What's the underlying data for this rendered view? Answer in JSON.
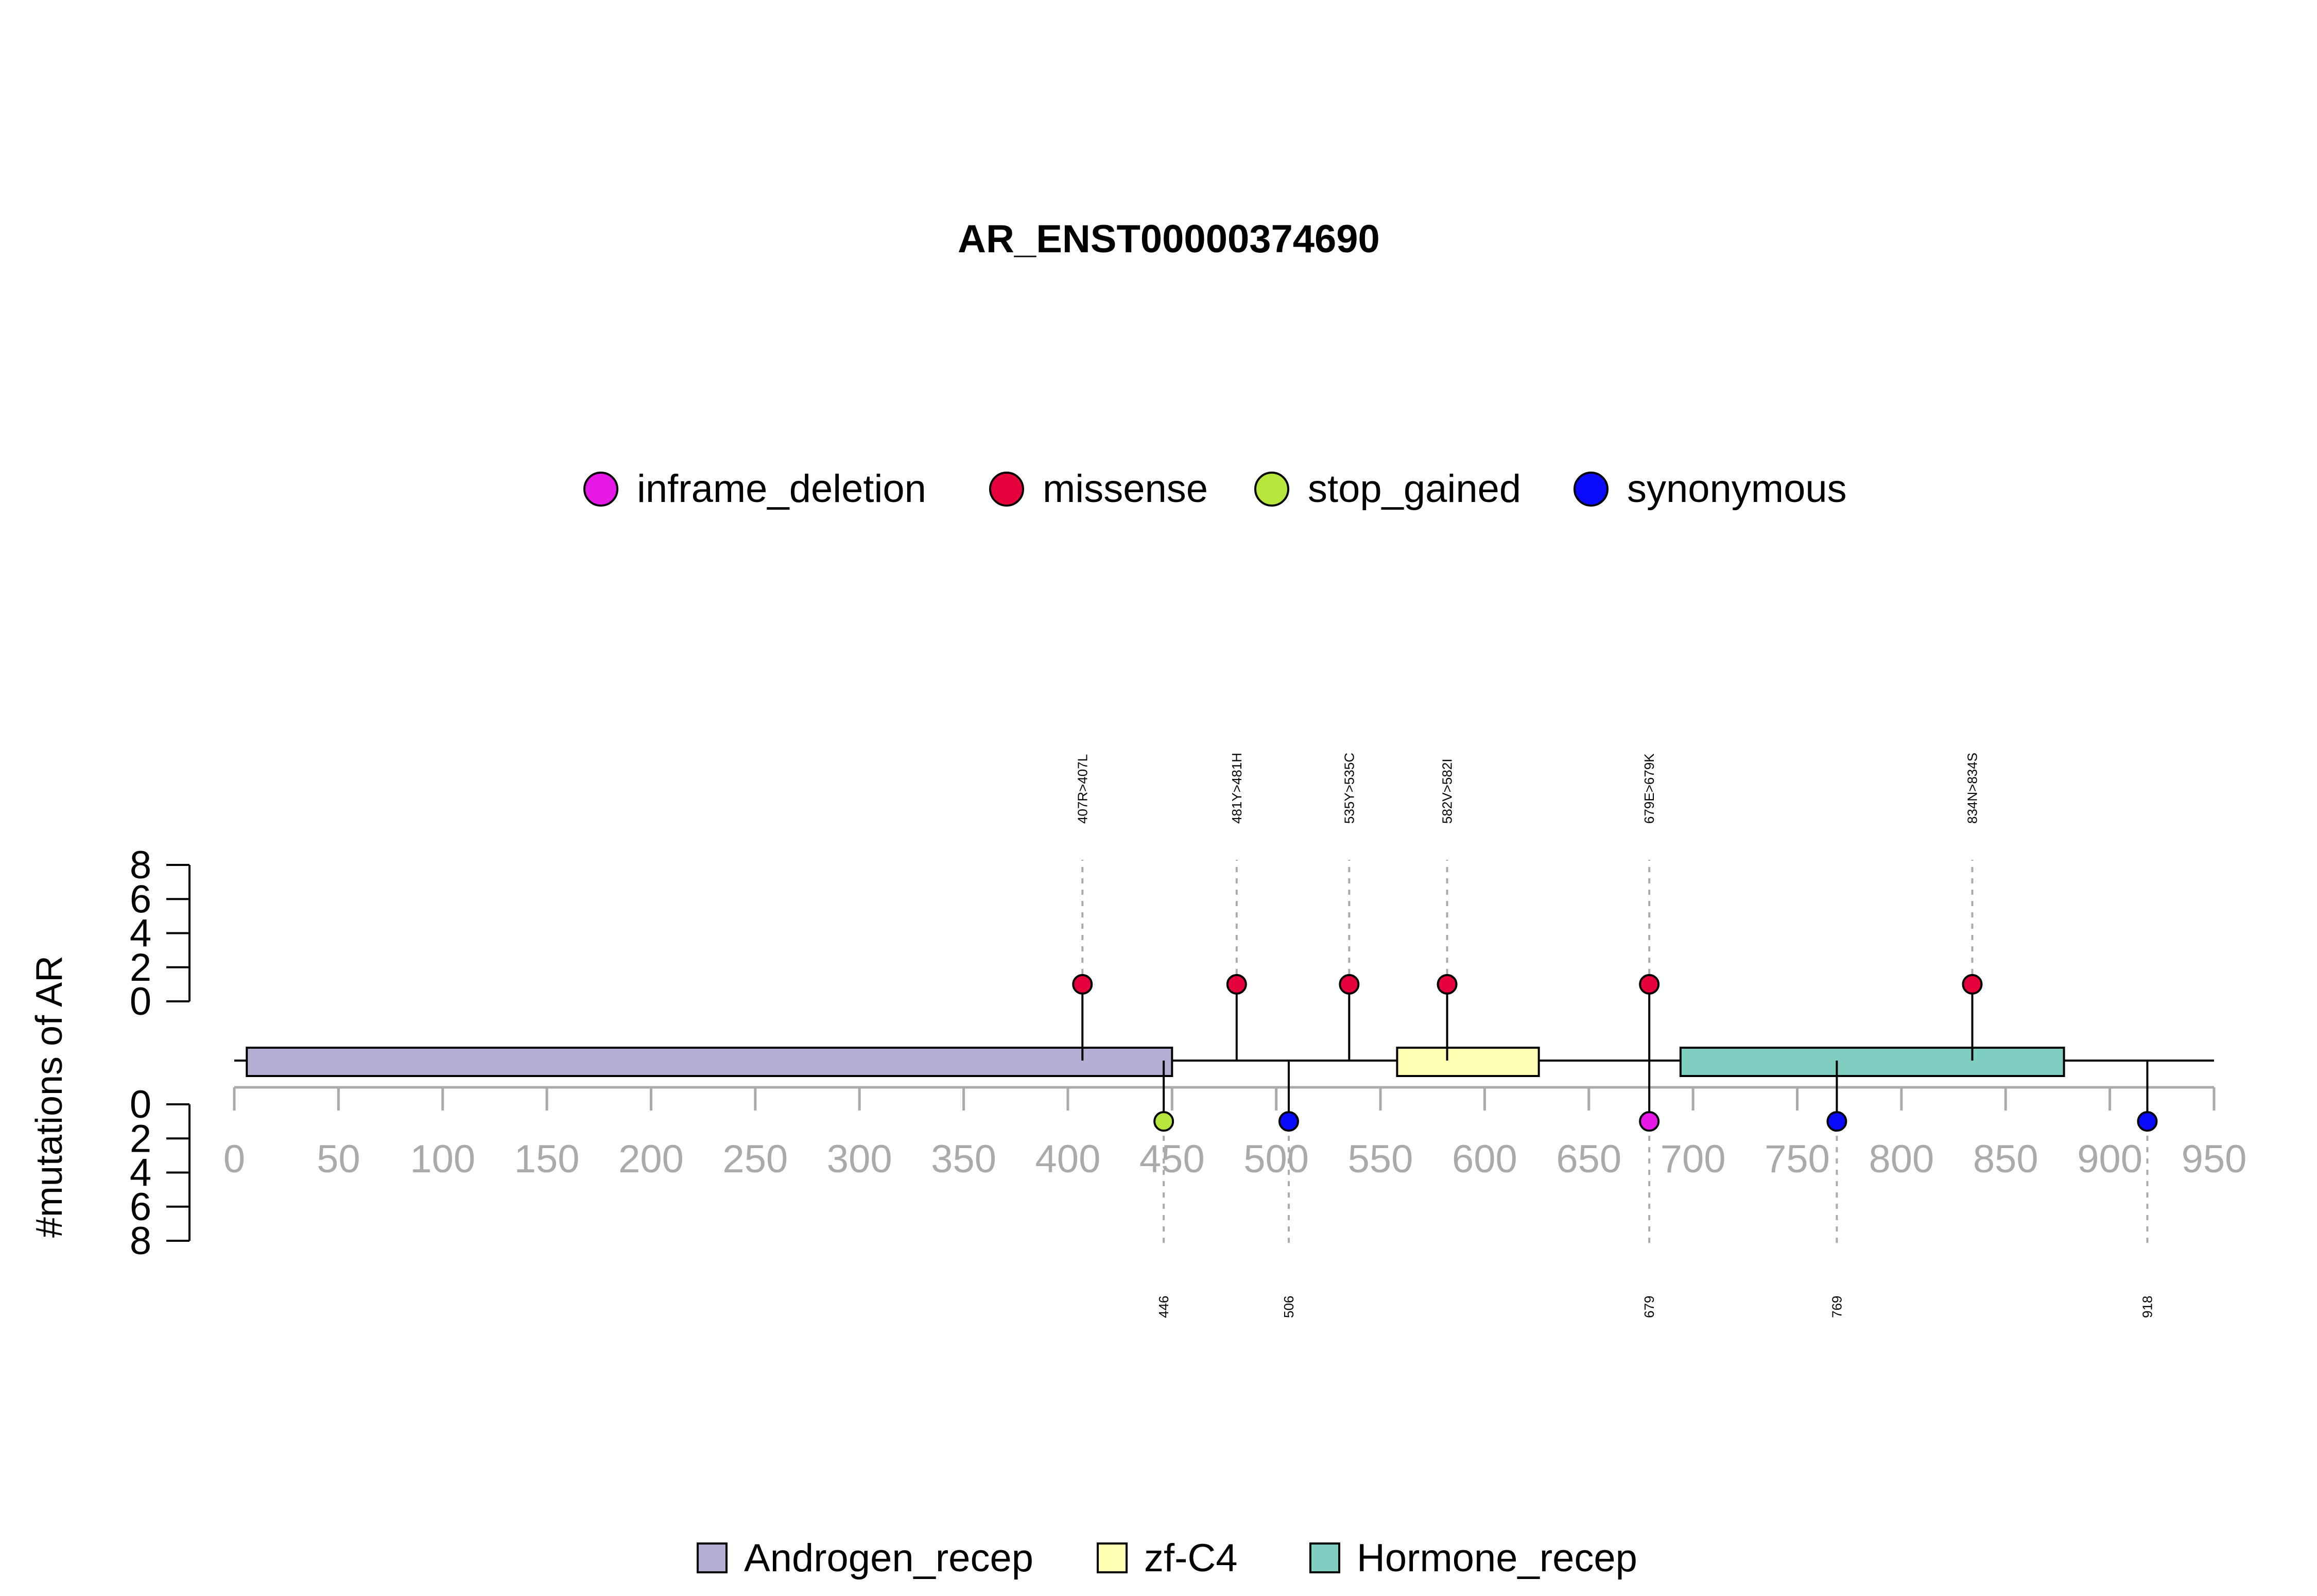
{
  "chart_data": {
    "type": "lollipop",
    "title": "AR_ENST00000374690",
    "ylabel": "#mutations of AR",
    "xlim": [
      0,
      950
    ],
    "x_ticks": [
      0,
      50,
      100,
      150,
      200,
      250,
      300,
      350,
      400,
      450,
      500,
      550,
      600,
      650,
      700,
      750,
      800,
      850,
      900,
      950
    ],
    "upper_y_ticks": [
      0,
      2,
      4,
      6,
      8
    ],
    "lower_y_ticks": [
      0,
      2,
      4,
      6,
      8
    ],
    "mutation_types": [
      {
        "name": "inframe_deletion",
        "color": "#e619e6"
      },
      {
        "name": "missense",
        "color": "#e5003c"
      },
      {
        "name": "stop_gained",
        "color": "#b6e63c"
      },
      {
        "name": "synonymous",
        "color": "#0a0aff"
      }
    ],
    "upper_mutations": [
      {
        "position": 407,
        "count": 1,
        "type": "missense",
        "label": "407R>407L"
      },
      {
        "position": 481,
        "count": 1,
        "type": "missense",
        "label": "481Y>481H"
      },
      {
        "position": 535,
        "count": 1,
        "type": "missense",
        "label": "535Y>535C"
      },
      {
        "position": 582,
        "count": 1,
        "type": "missense",
        "label": "582V>582I"
      },
      {
        "position": 679,
        "count": 1,
        "type": "missense",
        "label": "679E>679K"
      },
      {
        "position": 834,
        "count": 1,
        "type": "missense",
        "label": "834N>834S"
      }
    ],
    "lower_mutations": [
      {
        "position": 446,
        "count": 1,
        "type": "stop_gained",
        "label": "446"
      },
      {
        "position": 506,
        "count": 1,
        "type": "synonymous",
        "label": "506"
      },
      {
        "position": 679,
        "count": 1,
        "type": "inframe_deletion",
        "label": "679"
      },
      {
        "position": 769,
        "count": 1,
        "type": "synonymous",
        "label": "769"
      },
      {
        "position": 918,
        "count": 1,
        "type": "synonymous",
        "label": "918"
      }
    ],
    "domains": [
      {
        "name": "Androgen_recep",
        "start": 6,
        "end": 450,
        "color": "#b3aed3"
      },
      {
        "name": "zf-C4",
        "start": 558,
        "end": 626,
        "color": "#ffffb3"
      },
      {
        "name": "Hormone_recep",
        "start": 694,
        "end": 878,
        "color": "#80cdc1"
      }
    ]
  }
}
